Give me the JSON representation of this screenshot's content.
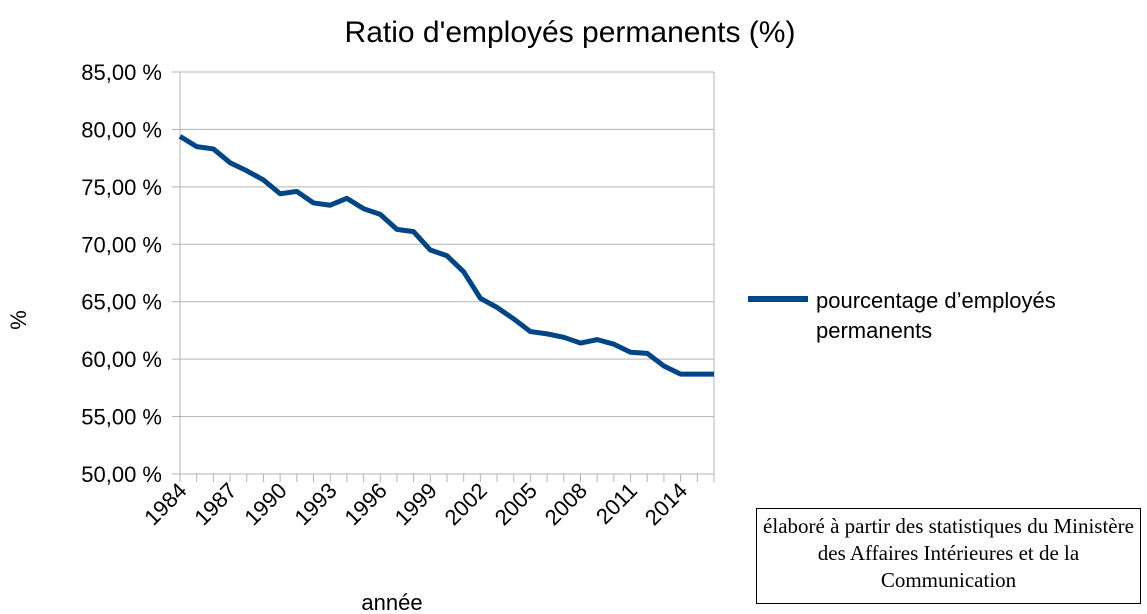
{
  "chart_data": {
    "type": "line",
    "title": "Ratio d'employés permanents (%)",
    "x_label": "année",
    "y_label": "%",
    "note": "élaboré à partir des statistiques du Ministère des Affaires Intérieures et de la Communication",
    "categories": [
      "1984",
      null,
      null,
      "1987",
      null,
      null,
      "1990",
      null,
      null,
      "1993",
      null,
      null,
      "1996",
      null,
      null,
      "1999",
      null,
      null,
      "2002",
      null,
      null,
      "2005",
      null,
      null,
      "2008",
      null,
      null,
      "2011",
      null,
      null,
      "2014",
      null,
      null
    ],
    "series": [
      {
        "name": "pourcentage d’employés permanents",
        "color": "#004586",
        "values": [
          79.4,
          78.5,
          78.3,
          77.1,
          76.4,
          75.6,
          74.4,
          74.6,
          73.6,
          73.4,
          74.0,
          73.1,
          72.6,
          71.3,
          71.1,
          69.5,
          69.0,
          67.6,
          65.3,
          64.5,
          63.5,
          62.4,
          62.2,
          61.9,
          61.4,
          61.7,
          61.3,
          60.6,
          60.5,
          59.4,
          58.7,
          58.7,
          58.7
        ]
      }
    ],
    "ylim": [
      50,
      85
    ],
    "yticks": [
      {
        "value": 50,
        "label": "50,00 %"
      },
      {
        "value": 55,
        "label": "55,00 %"
      },
      {
        "value": 60,
        "label": "60,00 %"
      },
      {
        "value": 65,
        "label": "65,00 %"
      },
      {
        "value": 70,
        "label": "70,00 %"
      },
      {
        "value": 75,
        "label": "75,00 %"
      },
      {
        "value": 80,
        "label": "80,00 %"
      },
      {
        "value": 85,
        "label": "85,00 %"
      }
    ],
    "grid": true,
    "legend": "right"
  }
}
